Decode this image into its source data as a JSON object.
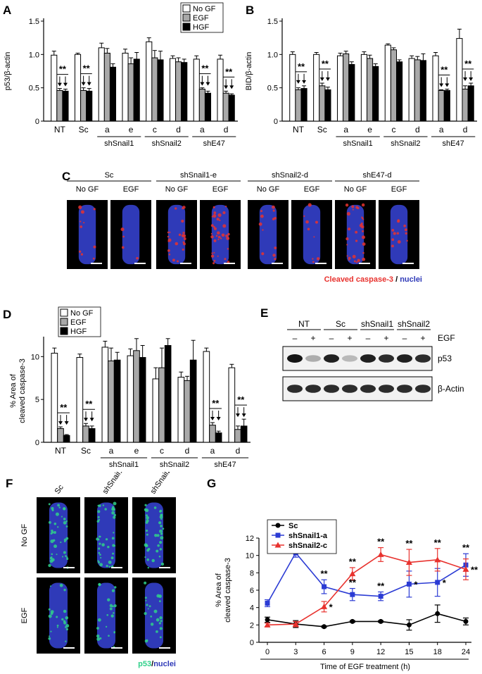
{
  "panels": {
    "A": {
      "label": "A",
      "chart_data": {
        "type": "bar",
        "ylabel": "p53/β-actin",
        "ylim": [
          0,
          1.5
        ],
        "yticks": [
          "0",
          "0.5",
          "1.0",
          "1.5"
        ],
        "categories": [
          "NT",
          "Sc",
          "a",
          "e",
          "c",
          "d",
          "a",
          "d"
        ],
        "groups": [
          {
            "name": "shSnail1",
            "from": 2,
            "to": 3
          },
          {
            "name": "shSnail2",
            "from": 4,
            "to": 5
          },
          {
            "name": "shE47",
            "from": 6,
            "to": 7
          }
        ],
        "series": [
          {
            "name": "No GF",
            "values": [
              0.99,
              1.0,
              1.1,
              1.02,
              1.19,
              0.94,
              0.93,
              0.93
            ],
            "errors": [
              0.06,
              0.02,
              0.07,
              0.06,
              0.06,
              0.04,
              0.05,
              0.06
            ]
          },
          {
            "name": "EGF",
            "values": [
              0.46,
              0.46,
              1.02,
              0.86,
              0.95,
              0.89,
              0.48,
              0.42
            ],
            "errors": [
              0.03,
              0.04,
              0.07,
              0.09,
              0.11,
              0.06,
              0.02,
              0.03
            ]
          },
          {
            "name": "HGF",
            "values": [
              0.45,
              0.45,
              0.81,
              0.93,
              0.92,
              0.88,
              0.42,
              0.39
            ],
            "errors": [
              0.03,
              0.04,
              0.05,
              0.1,
              0.13,
              0.05,
              0.03,
              0.02
            ]
          }
        ],
        "significance": [
          {
            "category": 0,
            "text": "**"
          },
          {
            "category": 1,
            "text": "**"
          },
          {
            "category": 6,
            "text": "**"
          },
          {
            "category": 7,
            "text": "**"
          }
        ]
      }
    },
    "B": {
      "label": "B",
      "chart_data": {
        "type": "bar",
        "ylabel": "BID/β-actin",
        "ylim": [
          0,
          1.5
        ],
        "yticks": [
          "0",
          "0.5",
          "1.0",
          "1.5"
        ],
        "categories": [
          "NT",
          "Sc",
          "a",
          "e",
          "c",
          "d",
          "a",
          "d"
        ],
        "groups": [
          {
            "name": "shSnail1",
            "from": 2,
            "to": 3
          },
          {
            "name": "shSnail2",
            "from": 4,
            "to": 5
          },
          {
            "name": "shE47",
            "from": 6,
            "to": 7
          }
        ],
        "series": [
          {
            "name": "No GF",
            "values": [
              1.0,
              1.0,
              0.98,
              1.0,
              1.14,
              0.94,
              0.98,
              1.24
            ],
            "errors": [
              0.04,
              0.03,
              0.04,
              0.04,
              0.02,
              0.04,
              0.05,
              0.14
            ]
          },
          {
            "name": "EGF",
            "values": [
              0.47,
              0.53,
              1.01,
              0.94,
              1.07,
              0.92,
              0.46,
              0.48
            ],
            "errors": [
              0.03,
              0.04,
              0.04,
              0.05,
              0.03,
              0.05,
              0.01,
              0.05
            ]
          },
          {
            "name": "HGF",
            "values": [
              0.49,
              0.47,
              0.85,
              0.82,
              0.89,
              0.91,
              0.46,
              0.53
            ],
            "errors": [
              0.04,
              0.04,
              0.04,
              0.04,
              0.03,
              0.1,
              0.02,
              0.04
            ]
          }
        ],
        "significance": [
          {
            "category": 0,
            "text": "**"
          },
          {
            "category": 1,
            "text": "**"
          },
          {
            "category": 6,
            "text": "**"
          },
          {
            "category": 7,
            "text": "**"
          }
        ]
      }
    },
    "C": {
      "label": "C",
      "groups": [
        {
          "name": "Sc",
          "conditions": [
            "No GF",
            "EGF"
          ]
        },
        {
          "name": "shSnail1-e",
          "conditions": [
            "No GF",
            "EGF"
          ]
        },
        {
          "name": "shSnail2-d",
          "conditions": [
            "No GF",
            "EGF"
          ]
        },
        {
          "name": "shE47-d",
          "conditions": [
            "No GF",
            "EGF"
          ]
        }
      ],
      "caption_red": "Cleaved caspase-3",
      "caption_sep": " / ",
      "caption_blue": "nuclei",
      "colors": {
        "stain": "#e8322e",
        "nuclei": "#2f3ab8",
        "background": "#000000"
      }
    },
    "D": {
      "label": "D",
      "chart_data": {
        "type": "bar",
        "ylabel": [
          "% Area of",
          "cleaved caspase-3"
        ],
        "ylim": [
          0,
          12
        ],
        "yticks": [
          "0",
          "5",
          "10"
        ],
        "categories": [
          "NT",
          "Sc",
          "a",
          "e",
          "c",
          "d",
          "a",
          "d"
        ],
        "groups": [
          {
            "name": "shSnail1",
            "from": 2,
            "to": 3
          },
          {
            "name": "shSnail2",
            "from": 4,
            "to": 5
          },
          {
            "name": "shE47",
            "from": 6,
            "to": 7
          }
        ],
        "series": [
          {
            "name": "No GF",
            "values": [
              10.4,
              9.9,
              11.1,
              10.1,
              7.4,
              7.6,
              10.6,
              8.7
            ],
            "errors": [
              0.6,
              0.4,
              0.7,
              0.8,
              1.3,
              0.6,
              0.4,
              0.4
            ]
          },
          {
            "name": "EGF",
            "values": [
              1.6,
              1.9,
              9.5,
              10.7,
              8.7,
              7.2,
              2.0,
              1.5
            ],
            "errors": [
              0.2,
              0.3,
              1.5,
              1.4,
              2.3,
              0.5,
              0.3,
              0.4
            ]
          },
          {
            "name": "HGF",
            "values": [
              0.8,
              1.6,
              9.6,
              9.9,
              11.3,
              9.6,
              1.1,
              1.9
            ],
            "errors": [
              0.1,
              0.3,
              0.9,
              1.4,
              0.8,
              2.3,
              0.2,
              0.8
            ]
          }
        ],
        "significance": [
          {
            "category": 0,
            "text": "**"
          },
          {
            "category": 1,
            "text": "**"
          },
          {
            "category": 6,
            "text": "**"
          },
          {
            "category": 7,
            "text": "**"
          }
        ]
      }
    },
    "E": {
      "label": "E",
      "groups": [
        "NT",
        "Sc",
        "shSnail1",
        "shSnail2"
      ],
      "egf_row": [
        "–",
        "+",
        "–",
        "+",
        "–",
        "+",
        "–",
        "+"
      ],
      "egf_label": "EGF",
      "bands": [
        {
          "name": "p53",
          "intensity": [
            1.0,
            0.35,
            0.95,
            0.3,
            0.95,
            0.9,
            0.95,
            0.9
          ]
        },
        {
          "name": "β-Actin",
          "intensity": [
            0.9,
            0.9,
            0.9,
            0.9,
            0.9,
            0.9,
            0.9,
            0.9
          ]
        }
      ]
    },
    "F": {
      "label": "F",
      "columns": [
        "Sc",
        "shSnail1-e",
        "shSnail2-d"
      ],
      "rows": [
        "No GF",
        "EGF"
      ],
      "caption_green": "p53",
      "caption_sep": "/",
      "caption_blue": "nuclei",
      "colors": {
        "stain": "#2fd08a",
        "nuclei": "#2f3ab8",
        "background": "#000000"
      }
    },
    "G": {
      "label": "G",
      "chart_data": {
        "type": "line",
        "xlabel": "Time of EGF treatment (h)",
        "ylabel": [
          "% Area of",
          "cleaved caspase-3"
        ],
        "x": [
          0,
          3,
          6,
          9,
          12,
          15,
          18,
          24
        ],
        "ylim": [
          0,
          12
        ],
        "yticks": [
          "0",
          "2",
          "4",
          "6",
          "8",
          "10",
          "12"
        ],
        "series": [
          {
            "name": "Sc",
            "color": "#000000",
            "marker": "circle",
            "values": [
              2.6,
              2.1,
              1.8,
              2.4,
              2.4,
              2.0,
              3.3,
              2.4
            ],
            "errors": [
              0.3,
              0.4,
              0.1,
              0.1,
              0.1,
              0.6,
              1.0,
              0.4
            ]
          },
          {
            "name": "shSnail1-a",
            "color": "#2b3bd4",
            "marker": "square",
            "values": [
              4.5,
              10.3,
              6.4,
              5.5,
              5.3,
              6.7,
              6.9,
              8.9
            ],
            "errors": [
              0.4,
              0.5,
              0.8,
              0.7,
              0.5,
              1.5,
              1.6,
              1.3
            ]
          },
          {
            "name": "shSnail2-c",
            "color": "#e8322e",
            "marker": "triangle",
            "values": [
              2.0,
              2.1,
              4.1,
              7.9,
              10.1,
              9.2,
              9.5,
              8.4
            ],
            "errors": [
              0.2,
              0.3,
              0.6,
              0.7,
              0.8,
              1.5,
              1.3,
              1.2
            ]
          }
        ],
        "annotations": [
          {
            "series": 1,
            "x": 3,
            "text": "**",
            "pos": "above"
          },
          {
            "series": 1,
            "x": 6,
            "text": "**",
            "pos": "above"
          },
          {
            "series": 1,
            "x": 9,
            "text": "**",
            "pos": "above"
          },
          {
            "series": 1,
            "x": 12,
            "text": "**",
            "pos": "above"
          },
          {
            "series": 1,
            "x": 15,
            "text": "*",
            "pos": "right"
          },
          {
            "series": 1,
            "x": 18,
            "text": "*",
            "pos": "right"
          },
          {
            "series": 1,
            "x": 24,
            "text": "**",
            "pos": "above"
          },
          {
            "series": 2,
            "x": 6,
            "text": "*",
            "pos": "right"
          },
          {
            "series": 2,
            "x": 9,
            "text": "**",
            "pos": "above"
          },
          {
            "series": 2,
            "x": 12,
            "text": "**",
            "pos": "above"
          },
          {
            "series": 2,
            "x": 15,
            "text": "**",
            "pos": "above"
          },
          {
            "series": 2,
            "x": 18,
            "text": "**",
            "pos": "above"
          },
          {
            "series": 2,
            "x": 24,
            "text": "**",
            "pos": "right"
          }
        ]
      }
    }
  }
}
